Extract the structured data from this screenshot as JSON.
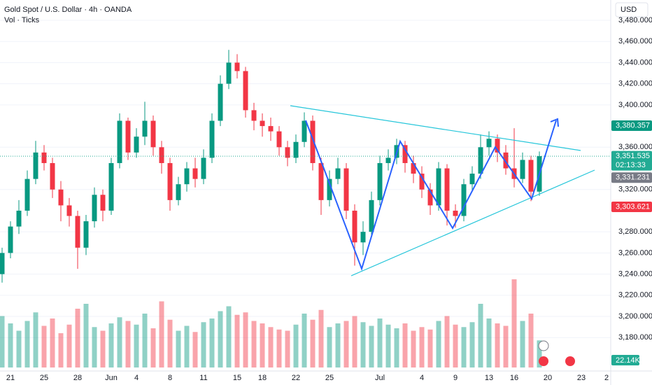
{
  "chart_data": {
    "type": "candlestick",
    "title": "Gold Spot / U.S. Dollar · 4h · OANDA",
    "subtitle": "Vol · Ticks",
    "currency": "USD",
    "categories": [
      null,
      "21",
      null,
      null,
      null,
      "25",
      null,
      null,
      null,
      "28",
      null,
      null,
      null,
      "Jun",
      null,
      null,
      "4",
      null,
      null,
      null,
      "8",
      null,
      null,
      null,
      "11",
      null,
      null,
      null,
      "15",
      null,
      null,
      "18",
      null,
      null,
      null,
      "22",
      null,
      null,
      null,
      "25",
      null,
      null,
      null,
      null,
      null,
      "Jul",
      null,
      null,
      null,
      null,
      "4",
      null,
      null,
      null,
      "9",
      null,
      null,
      null,
      "13",
      null,
      null,
      "16",
      null,
      null,
      null,
      "20",
      null,
      null,
      null,
      "23",
      null,
      null,
      "2"
    ],
    "open": [
      3240,
      3260,
      3285,
      3300,
      3330,
      3355,
      3345,
      3320,
      3305,
      3295,
      3265,
      3290,
      3315,
      3300,
      3345,
      3385,
      3355,
      3370,
      3385,
      3360,
      3345,
      3310,
      3325,
      3340,
      3330,
      3350,
      3385,
      3420,
      3440,
      3432,
      3395,
      3385,
      3380,
      3375,
      3360,
      3350,
      3365,
      3385,
      3345,
      3310,
      3330,
      3340,
      3300,
      3270,
      3280,
      3310,
      3345,
      3350,
      3362,
      3345,
      3335,
      3320,
      3305,
      3340,
      3300,
      3295,
      3325,
      3335,
      3360,
      3368,
      3355,
      3340,
      3330,
      3348,
      3318,
      null,
      null,
      null,
      null,
      null,
      null,
      null,
      null
    ],
    "high": [
      3265,
      3290,
      3310,
      3338,
      3366,
      3362,
      3350,
      3328,
      3312,
      3300,
      3296,
      3322,
      3320,
      3350,
      3392,
      3388,
      3378,
      3403,
      3390,
      3366,
      3350,
      3332,
      3346,
      3350,
      3358,
      3392,
      3428,
      3452,
      3448,
      3436,
      3402,
      3392,
      3388,
      3380,
      3366,
      3372,
      3393,
      3390,
      3350,
      3338,
      3350,
      3345,
      3306,
      3290,
      3318,
      3352,
      3358,
      3368,
      3366,
      3352,
      3342,
      3326,
      3346,
      3344,
      3306,
      3330,
      3342,
      3372,
      3375,
      3372,
      3362,
      3378,
      3355,
      3352,
      3356,
      null,
      null,
      null,
      null,
      null,
      null,
      null,
      null
    ],
    "low": [
      3232,
      3255,
      3278,
      3295,
      3325,
      3338,
      3312,
      3290,
      3285,
      3245,
      3258,
      3284,
      3290,
      3296,
      3340,
      3348,
      3350,
      3362,
      3352,
      3335,
      3300,
      3305,
      3318,
      3322,
      3325,
      3345,
      3380,
      3415,
      3425,
      3388,
      3376,
      3370,
      3366,
      3352,
      3342,
      3345,
      3360,
      3338,
      3296,
      3304,
      3325,
      3292,
      3248,
      3258,
      3275,
      3305,
      3338,
      3344,
      3336,
      3326,
      3312,
      3296,
      3300,
      3286,
      3284,
      3290,
      3318,
      3330,
      3352,
      3346,
      3334,
      3322,
      3326,
      3309,
      3314,
      null,
      null,
      null,
      null,
      null,
      null,
      null,
      null
    ],
    "close": [
      3260,
      3285,
      3300,
      3330,
      3355,
      3345,
      3320,
      3305,
      3295,
      3265,
      3290,
      3315,
      3300,
      3345,
      3385,
      3355,
      3370,
      3385,
      3360,
      3345,
      3310,
      3325,
      3340,
      3330,
      3350,
      3385,
      3420,
      3440,
      3432,
      3395,
      3385,
      3380,
      3375,
      3360,
      3350,
      3365,
      3385,
      3345,
      3310,
      3330,
      3340,
      3300,
      3270,
      3280,
      3310,
      3345,
      3350,
      3362,
      3345,
      3335,
      3320,
      3305,
      3340,
      3300,
      3295,
      3325,
      3335,
      3360,
      3368,
      3355,
      3340,
      3330,
      3348,
      3318,
      3351.535,
      null,
      null,
      null,
      null,
      null,
      null,
      null,
      null
    ],
    "volume": [
      42000,
      36000,
      30000,
      38000,
      45000,
      34000,
      40000,
      28000,
      35000,
      48000,
      52000,
      33000,
      30000,
      36000,
      41000,
      38000,
      35000,
      44000,
      32000,
      54000,
      39000,
      30000,
      34000,
      29000,
      37000,
      40000,
      46000,
      50000,
      43000,
      45000,
      38000,
      36000,
      33000,
      31000,
      30000,
      35000,
      44000,
      39000,
      47000,
      33000,
      36000,
      38000,
      42000,
      37000,
      34000,
      40000,
      35000,
      32000,
      36000,
      30000,
      33000,
      31000,
      38000,
      42000,
      35000,
      33000,
      37000,
      52000,
      40000,
      36000,
      34000,
      72000,
      38000,
      44000,
      22140,
      null,
      null,
      null,
      null,
      null,
      null,
      null,
      null
    ],
    "up_color": "#089981",
    "down_color": "#f23645",
    "ylim": [
      3148.4,
      3499.2
    ],
    "volume_lim": [
      0,
      80000
    ],
    "yticks": [
      {
        "value": 3180,
        "label": "3,180.000"
      },
      {
        "value": 3200,
        "label": "3,200.000"
      },
      {
        "value": 3220,
        "label": "3,220.000"
      },
      {
        "value": 3240,
        "label": "3,240.000"
      },
      {
        "value": 3260,
        "label": "3,260.000"
      },
      {
        "value": 3280,
        "label": "3,280.000"
      },
      {
        "value": 3320,
        "label": "3,320.000"
      },
      {
        "value": 3360,
        "label": "3,360.000"
      },
      {
        "value": 3400,
        "label": "3,400.000"
      },
      {
        "value": 3420,
        "label": "3,420.000"
      },
      {
        "value": 3440,
        "label": "3,440.000"
      },
      {
        "value": 3460,
        "label": "3,460.000"
      },
      {
        "value": 3480,
        "label": "3,480.000"
      }
    ],
    "price_labels": [
      {
        "value": 3380.357,
        "label": "3,380.357",
        "color": "#089981"
      },
      {
        "value": 3351.535,
        "label": "3,351.535",
        "sub": "02:13:33",
        "color": "#22ab94"
      },
      {
        "value": 3331.231,
        "label": "3,331.231",
        "color": "#787b86"
      },
      {
        "value": 3303.621,
        "label": "3,303.621",
        "color": "#f23645"
      }
    ],
    "volume_badge": "22.14K"
  }
}
